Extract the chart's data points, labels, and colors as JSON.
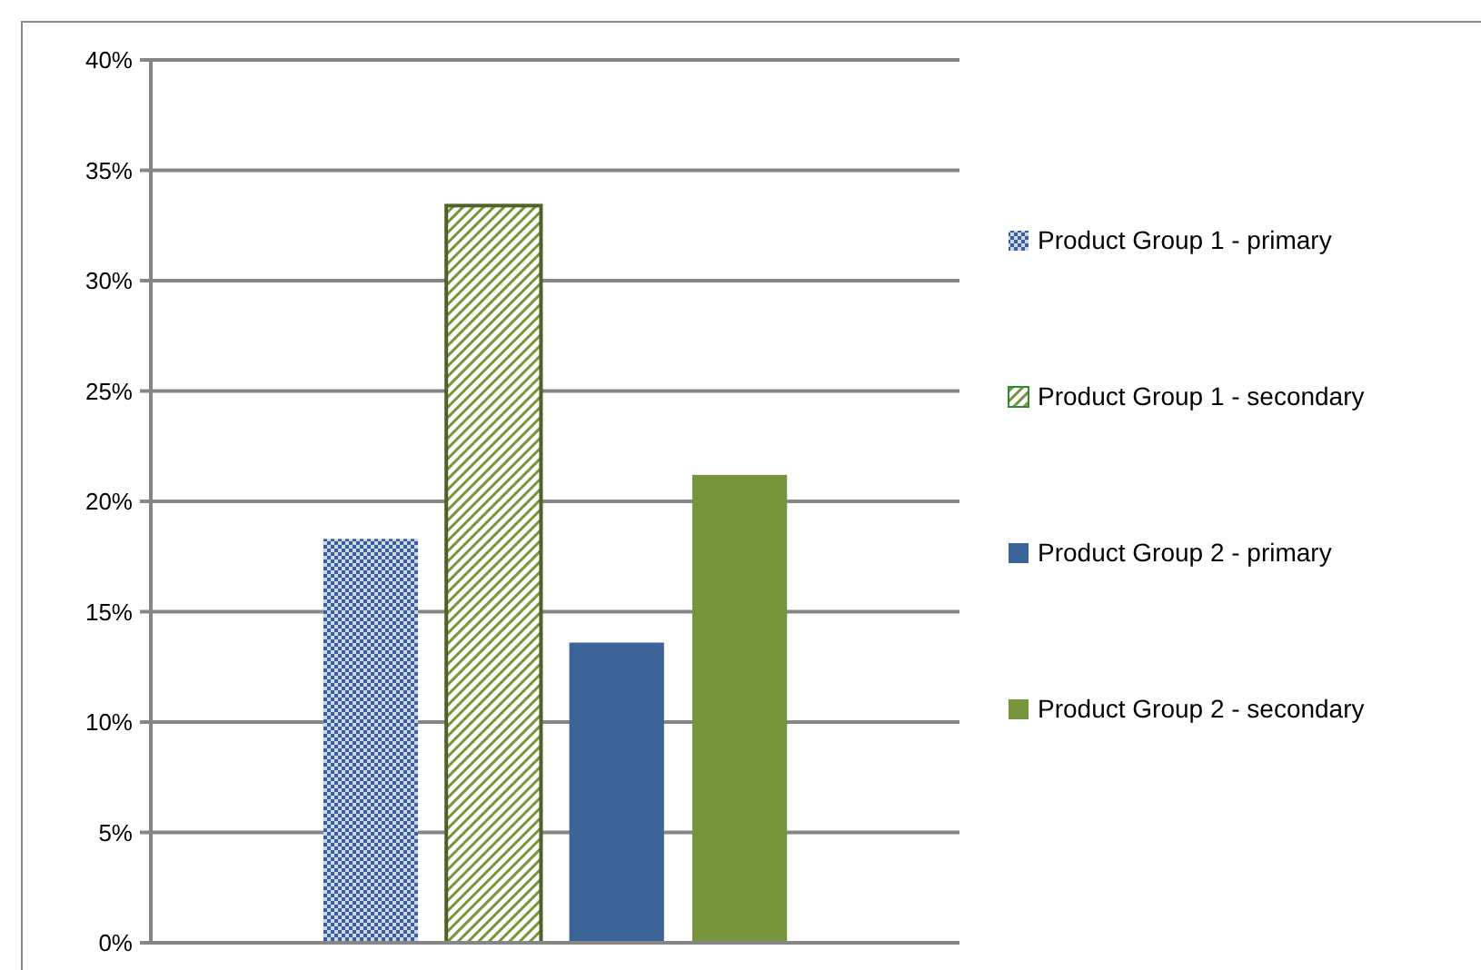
{
  "chart_data": {
    "type": "bar",
    "categories": [
      null
    ],
    "series": [
      {
        "name": "Product Group 1  - primary",
        "color": "#3b5f9b",
        "values": [
          18.3
        ]
      },
      {
        "name": "Product Group 1  - secondary",
        "color": "#4f6228",
        "values": [
          33.4
        ]
      },
      {
        "name": "Product Group 2  - primary",
        "color": "#3c6499",
        "values": [
          13.6
        ]
      },
      {
        "name": "Product Group 2  - secondary",
        "color": "#77953c",
        "values": [
          21.2
        ]
      }
    ],
    "ylim": [
      0,
      40
    ],
    "yticks": [
      {
        "value": 0,
        "label": "0%"
      },
      {
        "value": 5,
        "label": "5%"
      },
      {
        "value": 10,
        "label": "10%"
      },
      {
        "value": 15,
        "label": "15%"
      },
      {
        "value": 20,
        "label": "20%"
      },
      {
        "value": 25,
        "label": "25%"
      },
      {
        "value": 30,
        "label": "30%"
      },
      {
        "value": 35,
        "label": "35%"
      },
      {
        "value": 40,
        "label": "40%"
      }
    ],
    "grid": "y",
    "legend": "right"
  }
}
